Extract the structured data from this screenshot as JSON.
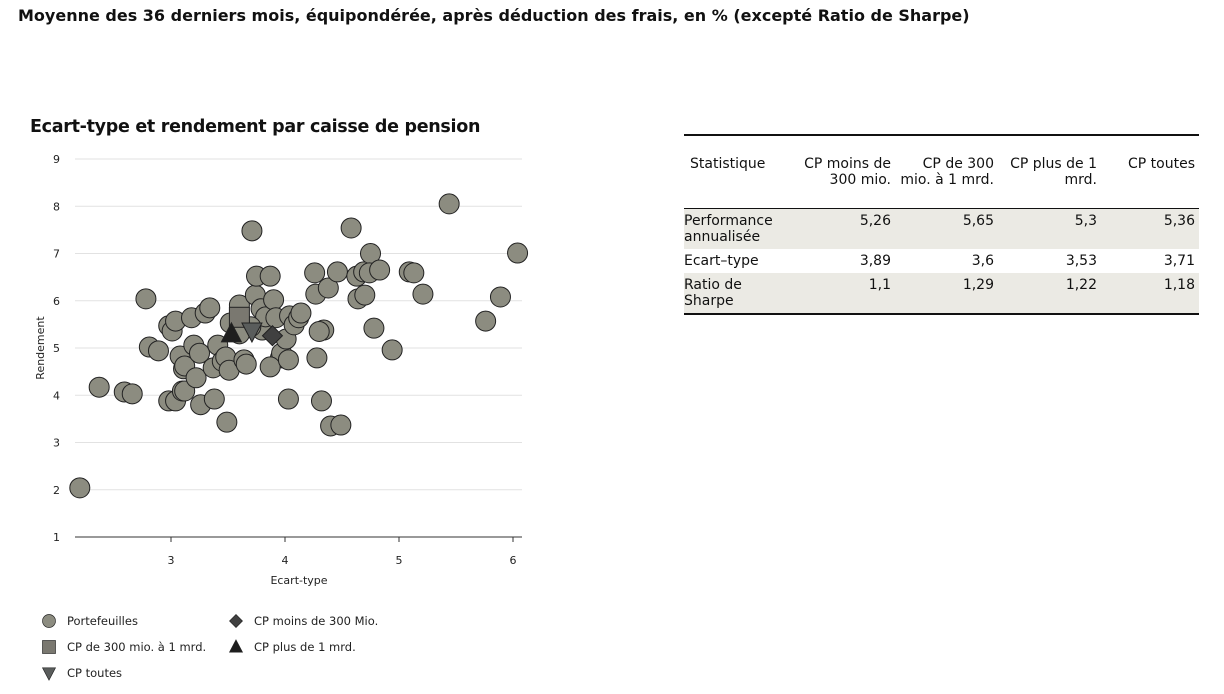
{
  "heading": "Moyenne des 36 derniers mois, équipondérée, après déduction des frais, en % (excepté Ratio de Sharpe)",
  "chart_data": {
    "type": "scatter",
    "title": "Ecart-type et rendement par caisse de pension",
    "xlabel": "Ecart-type",
    "ylabel": "Rendement",
    "xlim": [
      2.05,
      6.07
    ],
    "ylim": [
      1,
      9
    ],
    "xticks": [
      "3",
      "4",
      "5",
      "6"
    ],
    "yticks": [
      "1",
      "2",
      "3",
      "4",
      "5",
      "6",
      "7",
      "8",
      "9"
    ],
    "grid": "horizontal",
    "legend_position": "bottom",
    "series": [
      {
        "name": "Portefeuilles",
        "marker": "circle",
        "color": "#8c8c80",
        "points": [
          [
            2.2,
            2.04
          ],
          [
            2.37,
            4.17
          ],
          [
            2.59,
            4.07
          ],
          [
            2.66,
            4.03
          ],
          [
            2.78,
            6.04
          ],
          [
            2.81,
            5.02
          ],
          [
            2.89,
            4.94
          ],
          [
            2.98,
            5.47
          ],
          [
            3.01,
            5.36
          ],
          [
            3.04,
            5.57
          ],
          [
            2.98,
            3.88
          ],
          [
            3.04,
            3.88
          ],
          [
            3.08,
            4.83
          ],
          [
            3.11,
            4.56
          ],
          [
            3.12,
            4.62
          ],
          [
            3.1,
            4.09
          ],
          [
            3.12,
            4.09
          ],
          [
            3.18,
            5.64
          ],
          [
            3.2,
            5.06
          ],
          [
            3.22,
            4.37
          ],
          [
            3.25,
            4.89
          ],
          [
            3.26,
            3.8
          ],
          [
            3.3,
            5.74
          ],
          [
            3.34,
            5.85
          ],
          [
            3.37,
            4.58
          ],
          [
            3.38,
            3.92
          ],
          [
            3.41,
            5.06
          ],
          [
            3.45,
            4.72
          ],
          [
            3.48,
            4.81
          ],
          [
            3.49,
            3.43
          ],
          [
            3.51,
            4.53
          ],
          [
            3.52,
            5.53
          ],
          [
            3.6,
            5.91
          ],
          [
            3.64,
            4.75
          ],
          [
            3.66,
            4.66
          ],
          [
            3.71,
            7.48
          ],
          [
            3.74,
            6.12
          ],
          [
            3.75,
            6.52
          ],
          [
            3.79,
            5.83
          ],
          [
            3.8,
            5.38
          ],
          [
            3.83,
            5.66
          ],
          [
            3.87,
            6.52
          ],
          [
            3.9,
            6.02
          ],
          [
            3.92,
            5.64
          ],
          [
            3.96,
            4.79
          ],
          [
            3.97,
            4.89
          ],
          [
            4.01,
            5.19
          ],
          [
            4.04,
            5.68
          ],
          [
            4.03,
            3.92
          ],
          [
            4.08,
            5.49
          ],
          [
            4.12,
            5.64
          ],
          [
            4.14,
            5.74
          ],
          [
            3.87,
            4.6
          ],
          [
            4.03,
            4.75
          ],
          [
            4.26,
            6.59
          ],
          [
            4.27,
            6.14
          ],
          [
            4.28,
            4.79
          ],
          [
            4.32,
            3.88
          ],
          [
            4.34,
            5.38
          ],
          [
            4.38,
            6.27
          ],
          [
            4.4,
            3.35
          ],
          [
            4.49,
            3.37
          ],
          [
            4.46,
            6.61
          ],
          [
            4.58,
            7.54
          ],
          [
            4.63,
            6.52
          ],
          [
            4.64,
            6.04
          ],
          [
            4.69,
            6.61
          ],
          [
            4.7,
            6.12
          ],
          [
            4.75,
            7.0
          ],
          [
            4.78,
            5.42
          ],
          [
            4.74,
            6.59
          ],
          [
            4.83,
            6.65
          ],
          [
            4.94,
            4.96
          ],
          [
            5.09,
            6.61
          ],
          [
            5.13,
            6.59
          ],
          [
            5.21,
            6.14
          ],
          [
            5.44,
            8.05
          ],
          [
            5.76,
            5.57
          ],
          [
            5.89,
            6.08
          ],
          [
            6.04,
            7.01
          ],
          [
            3.7,
            5.45
          ],
          [
            3.6,
            5.3
          ],
          [
            4.3,
            5.35
          ]
        ]
      },
      {
        "name": "CP moins de 300 Mio.",
        "marker": "diamond",
        "color": "#404040",
        "points": [
          [
            3.89,
            5.26
          ]
        ]
      },
      {
        "name": "CP de 300 mio. à 1 mrd.",
        "marker": "square",
        "color": "#7a7870",
        "points": [
          [
            3.6,
            5.65
          ]
        ]
      },
      {
        "name": "CP plus de 1 mrd.",
        "marker": "triangle-up",
        "color": "#1e1e1e",
        "points": [
          [
            3.53,
            5.3
          ]
        ]
      },
      {
        "name": "CP toutes",
        "marker": "triangle-down",
        "color": "#5a5d5c",
        "points": [
          [
            3.71,
            5.36
          ]
        ]
      }
    ]
  },
  "table": {
    "headers": [
      "Statistique",
      "CP moins de 300 mio.",
      "CP de 300 mio. à 1 mrd.",
      "CP plus de 1 mrd.",
      "CP toutes"
    ],
    "rows": [
      {
        "label": "Performance annualisée",
        "values": [
          "5,26",
          "5,65",
          "5,3",
          "5,36"
        ]
      },
      {
        "label": "Ecart–type",
        "values": [
          "3,89",
          "3,6",
          "3,53",
          "3,71"
        ]
      },
      {
        "label": "Ratio de Sharpe",
        "values": [
          "1,1",
          "1,29",
          "1,22",
          "1,18"
        ]
      }
    ]
  }
}
